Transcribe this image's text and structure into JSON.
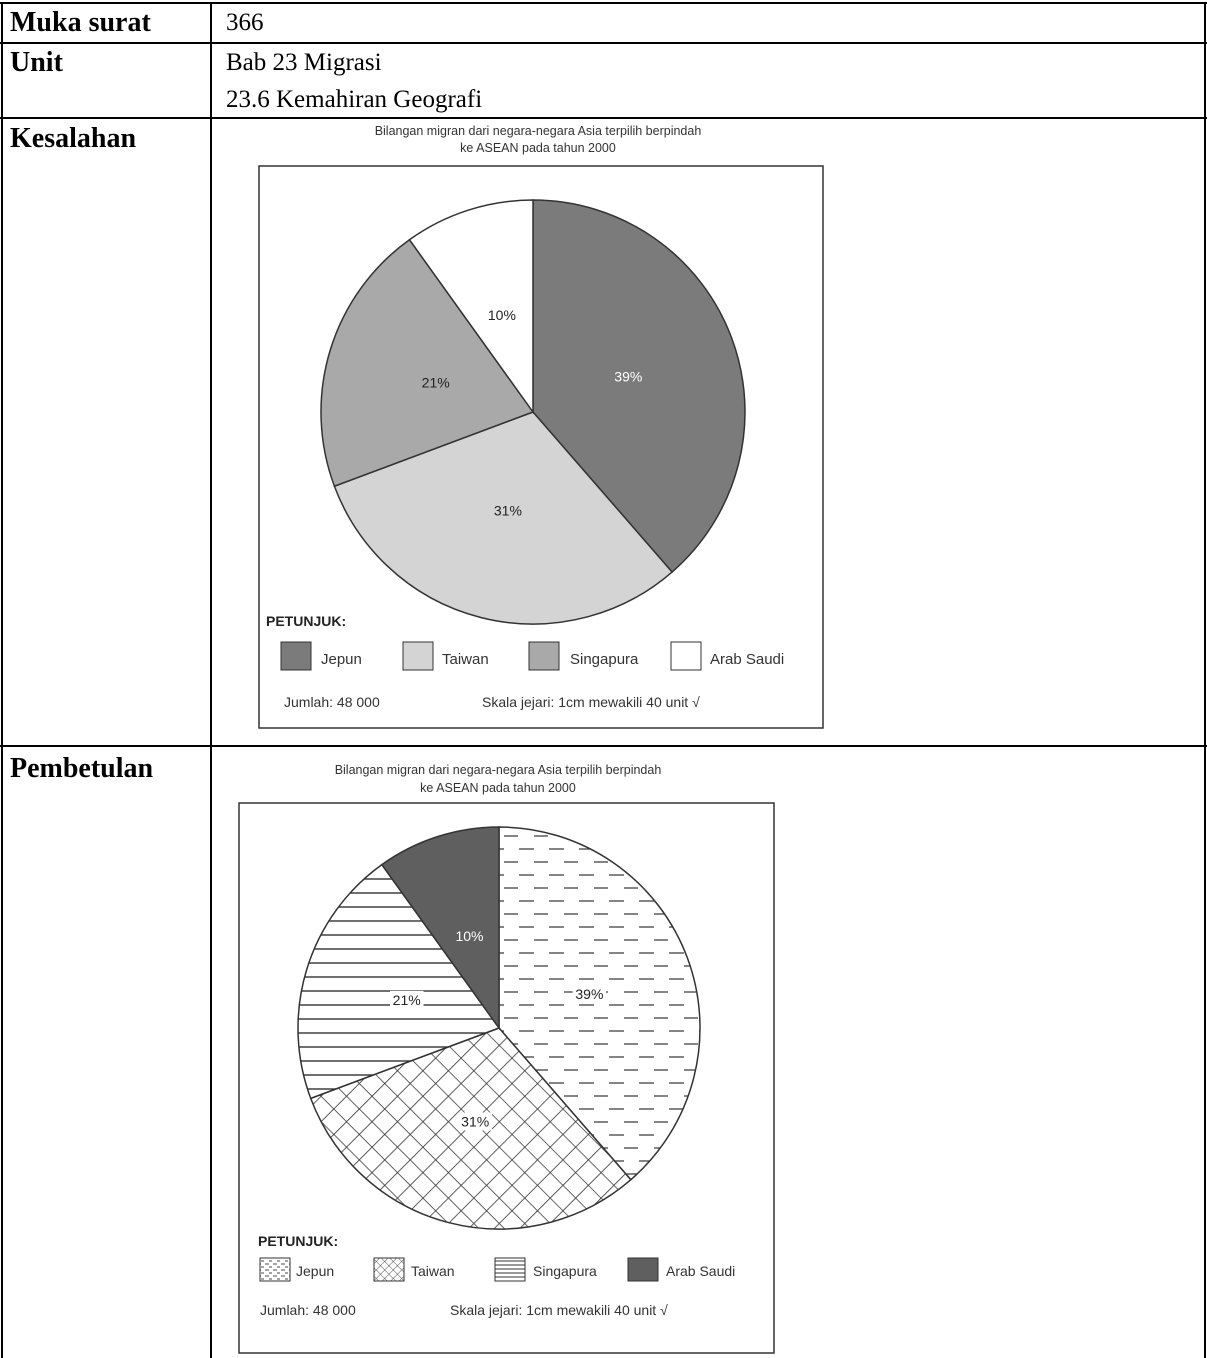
{
  "table": {
    "rows": [
      {
        "label": "Muka surat",
        "lines": [
          "366"
        ]
      },
      {
        "label": "Unit",
        "lines": [
          "Bab 23 Migrasi",
          "23.6 Kemahiran Geografi"
        ]
      },
      {
        "label": "Kesalahan",
        "lines": []
      },
      {
        "label": "Pembetulan",
        "lines": []
      }
    ]
  },
  "chart_data": [
    {
      "type": "pie",
      "panel": "Kesalahan",
      "title_lines": [
        "Bilangan migran dari negara-negara Asia terpilih berpindah",
        "ke ASEAN pada tahun 2000"
      ],
      "slices": [
        {
          "name": "Jepun",
          "value": 39,
          "label": "39%",
          "fill": "#7b7b7b",
          "label_color": "#ffffff"
        },
        {
          "name": "Taiwan",
          "value": 31,
          "label": "31%",
          "fill": "#d4d4d4",
          "label_color": "#222222"
        },
        {
          "name": "Singapura",
          "value": 21,
          "label": "21%",
          "fill": "#a9a9a9",
          "label_color": "#222222"
        },
        {
          "name": "Arab Saudi",
          "value": 10,
          "label": "10%",
          "fill": "#ffffff",
          "label_color": "#222222"
        }
      ],
      "legend_title": "PETUNJUK:",
      "legend": [
        "Jepun",
        "Taiwan",
        "Singapura",
        "Arab Saudi"
      ],
      "total_text": "Jumlah: 48 000",
      "scale_text": "Skala jejari: 1cm mewakili 40 unit √"
    },
    {
      "type": "pie",
      "panel": "Pembetulan",
      "title_lines": [
        "Bilangan migran dari negara-negara Asia terpilih berpindah",
        "ke ASEAN pada tahun 2000"
      ],
      "slices": [
        {
          "name": "Jepun",
          "value": 39,
          "label": "39%",
          "pattern": "dash",
          "label_color": "#222222"
        },
        {
          "name": "Taiwan",
          "value": 31,
          "label": "31%",
          "pattern": "cross",
          "label_color": "#222222"
        },
        {
          "name": "Singapura",
          "value": 21,
          "label": "21%",
          "pattern": "horizontal",
          "label_color": "#222222"
        },
        {
          "name": "Arab Saudi",
          "value": 10,
          "label": "10%",
          "pattern": "solid",
          "label_color": "#ffffff"
        }
      ],
      "legend_title": "PETUNJUK:",
      "legend": [
        "Jepun",
        "Taiwan",
        "Singapura",
        "Arab Saudi"
      ],
      "total_text": "Jumlah: 48 000",
      "scale_text": "Skala jejari: 1cm mewakili 40 unit √"
    }
  ]
}
